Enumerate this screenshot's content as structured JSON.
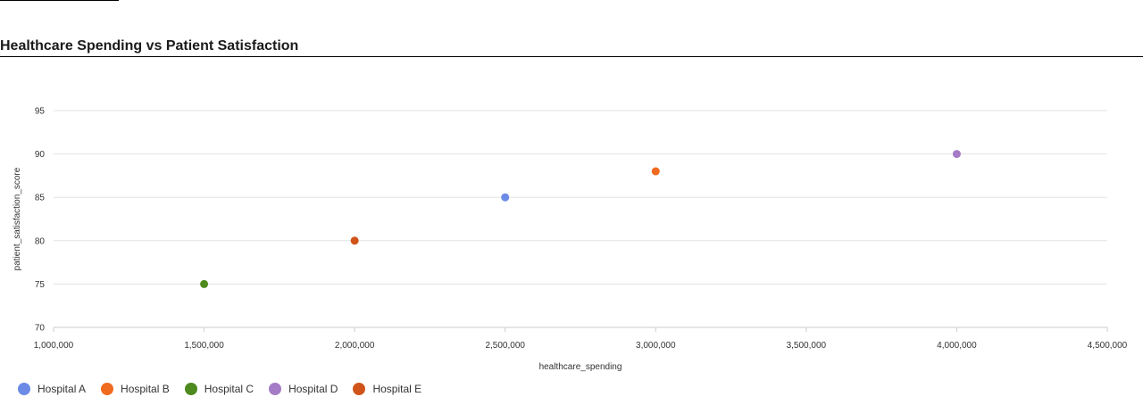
{
  "chart_data": {
    "type": "scatter",
    "title": "Healthcare Spending vs Patient Satisfaction",
    "xlabel": "healthcare_spending",
    "ylabel": "patient_satisfaction_score",
    "xlim": [
      1000000,
      4500000
    ],
    "ylim": [
      70,
      95
    ],
    "x_ticks": [
      1000000,
      1500000,
      2000000,
      2500000,
      3000000,
      3500000,
      4000000,
      4500000
    ],
    "x_tick_labels": [
      "1,000,000",
      "1,500,000",
      "2,000,000",
      "2,500,000",
      "3,000,000",
      "3,500,000",
      "4,000,000",
      "4,500,000"
    ],
    "y_ticks": [
      70,
      75,
      80,
      85,
      90,
      95
    ],
    "y_tick_labels": [
      "70",
      "75",
      "80",
      "85",
      "90",
      "95"
    ],
    "grid": true,
    "legend_position": "bottom-left",
    "series": [
      {
        "name": "Hospital A",
        "color": "#6B8BE6",
        "points": [
          {
            "x": 2500000,
            "y": 85
          }
        ]
      },
      {
        "name": "Hospital B",
        "color": "#F06A1F",
        "points": [
          {
            "x": 3000000,
            "y": 88
          }
        ]
      },
      {
        "name": "Hospital C",
        "color": "#4E8A1E",
        "points": [
          {
            "x": 1500000,
            "y": 75
          }
        ]
      },
      {
        "name": "Hospital D",
        "color": "#A47BC6",
        "points": [
          {
            "x": 4000000,
            "y": 90
          }
        ]
      },
      {
        "name": "Hospital E",
        "color": "#D0541A",
        "points": [
          {
            "x": 2000000,
            "y": 80
          }
        ]
      }
    ]
  }
}
